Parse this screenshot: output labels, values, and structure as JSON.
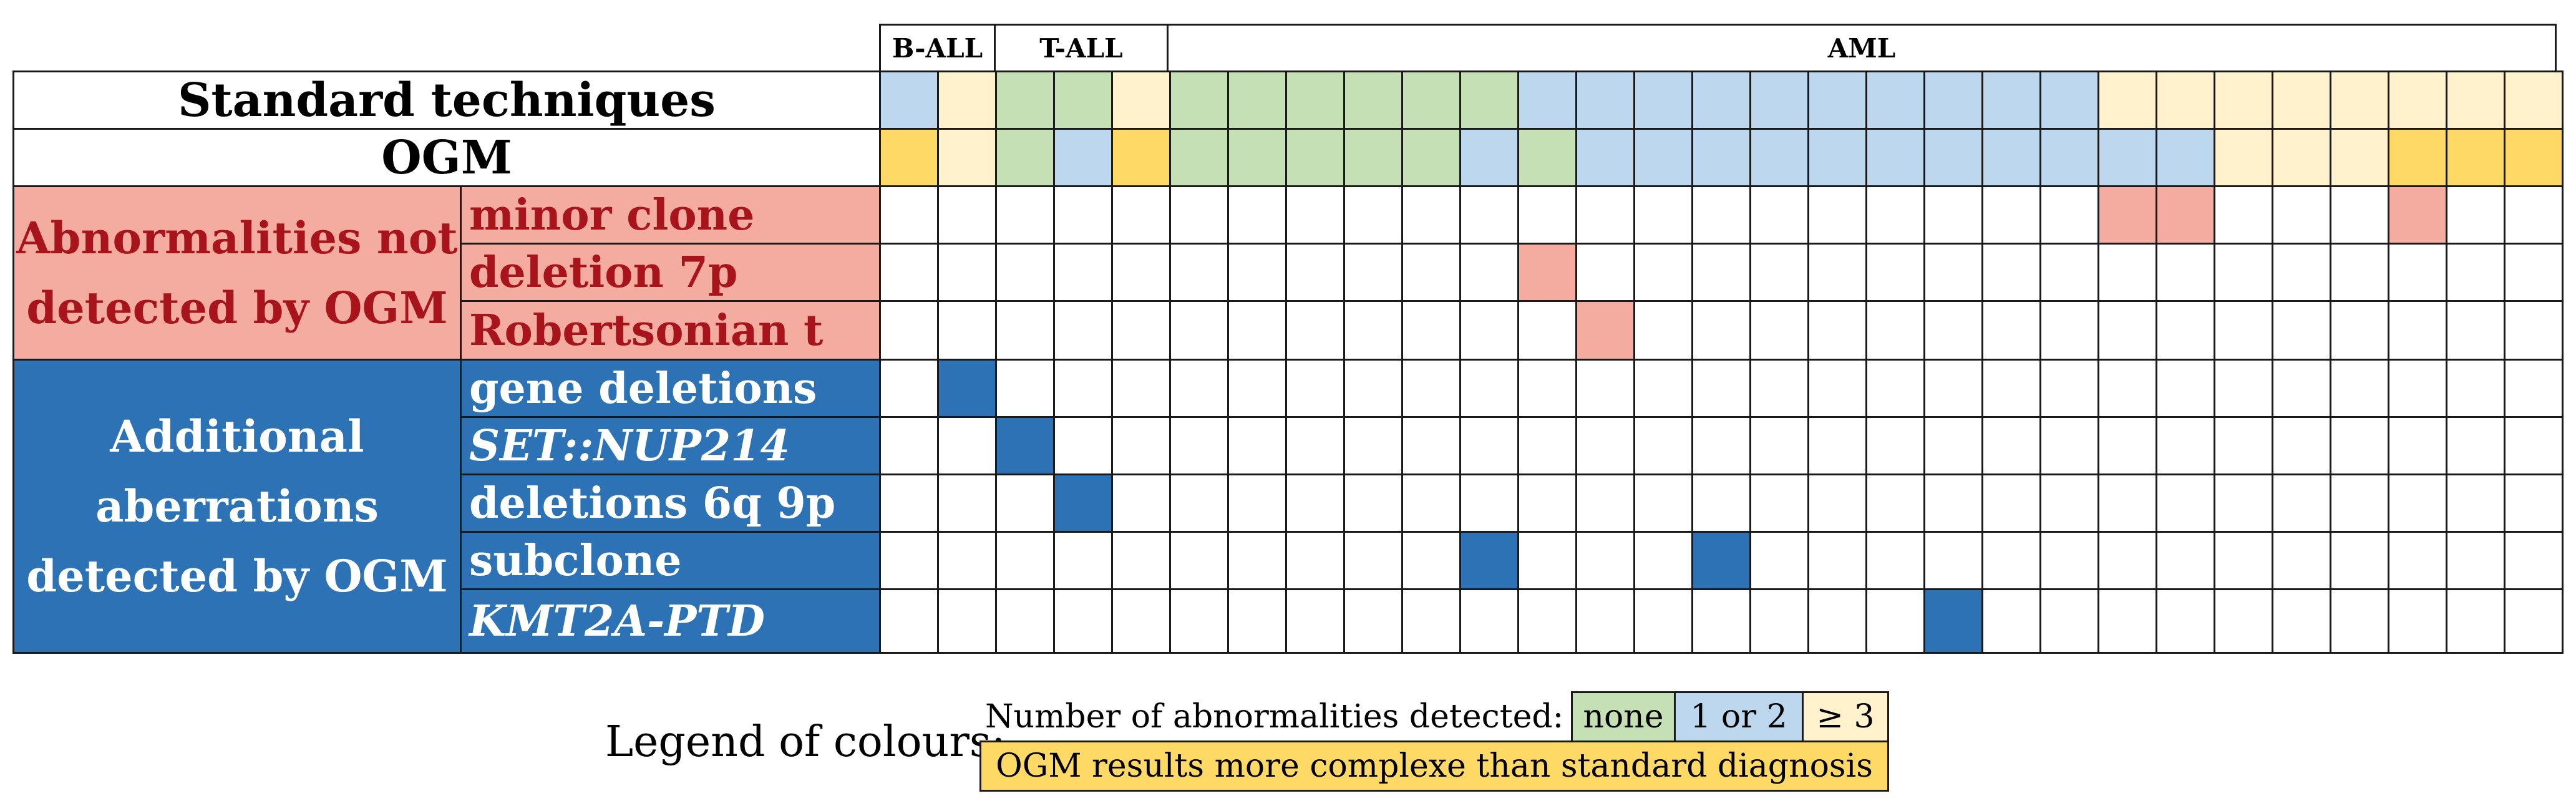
{
  "groups": [
    {
      "label": "B-ALL",
      "cols": 2
    },
    {
      "label": "T-ALL",
      "cols": 3
    },
    {
      "label": "AML",
      "cols": 24
    }
  ],
  "rows": {
    "standard": "Standard techniques",
    "ogm": "OGM"
  },
  "sections": [
    {
      "title_lines": [
        "Abnormalities not",
        "detected by OGM"
      ],
      "style": "red",
      "rows": [
        {
          "label": "minor clone",
          "italic": false
        },
        {
          "label": "deletion 7p",
          "italic": false
        },
        {
          "label": "Robertsonian t",
          "italic": false
        }
      ]
    },
    {
      "title_lines": [
        "Additional",
        "aberrations",
        "detected by OGM"
      ],
      "style": "blue",
      "rows": [
        {
          "label": "gene deletions",
          "italic": false
        },
        {
          "label": "SET::NUP214",
          "italic": true
        },
        {
          "label": "deletions 6q 9p",
          "italic": false
        },
        {
          "label": "subclone",
          "italic": false
        },
        {
          "label": "KMT2A-PTD",
          "italic": true
        }
      ]
    }
  ],
  "standard_colors": [
    "b",
    "c",
    "g",
    "g",
    "c",
    "g",
    "g",
    "g",
    "g",
    "g",
    "g",
    "b",
    "b",
    "b",
    "b",
    "b",
    "b",
    "b",
    "b",
    "b",
    "b",
    "c",
    "c",
    "c",
    "c",
    "c",
    "c",
    "c",
    "c"
  ],
  "ogm_colors": [
    "o",
    "c",
    "g",
    "b",
    "o",
    "g",
    "g",
    "g",
    "g",
    "g",
    "b",
    "g",
    "b",
    "b",
    "b",
    "b",
    "b",
    "b",
    "b",
    "b",
    "b",
    "b",
    "b",
    "c",
    "c",
    "c",
    "o",
    "o",
    "o"
  ],
  "marks": [
    {
      "row": 0,
      "col": 21
    },
    {
      "row": 0,
      "col": 22
    },
    {
      "row": 0,
      "col": 26
    },
    {
      "row": 1,
      "col": 11
    },
    {
      "row": 2,
      "col": 12
    },
    {
      "row": 3,
      "col": 1
    },
    {
      "row": 4,
      "col": 2
    },
    {
      "row": 5,
      "col": 3
    },
    {
      "row": 6,
      "col": 10
    },
    {
      "row": 6,
      "col": 14
    },
    {
      "row": 7,
      "col": 18
    }
  ],
  "colors": {
    "g": "#c5e0b4",
    "b": "#bdd7ee",
    "c": "#fff2cc",
    "o": "#ffd966",
    "red_mark": "#f4aca0",
    "blue_mark": "#2e72b6"
  },
  "legend": {
    "title": "Legend of colours:",
    "number_label": "Number of abnormalities detected:",
    "none": "none",
    "one_or_two": "1 or 2",
    "three_plus": "≥ 3",
    "complex": "OGM results more complexe than standard diagnosis"
  }
}
